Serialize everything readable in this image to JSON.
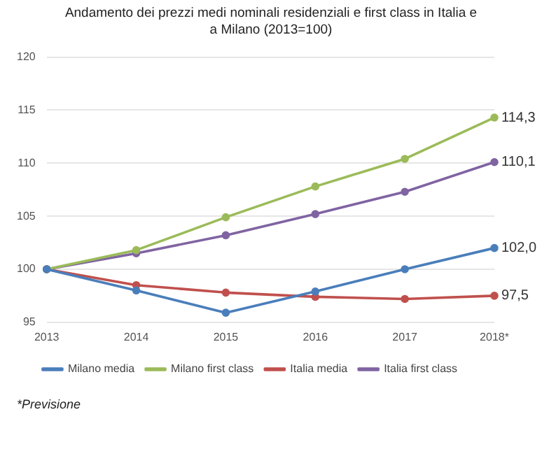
{
  "chart_data": {
    "type": "line",
    "title": "Andamento dei prezzi medi nominali residenziali e first class in Italia e a  Milano (2013=100)",
    "categories": [
      "2013",
      "2014",
      "2015",
      "2016",
      "2017",
      "2018*"
    ],
    "series": [
      {
        "name": "Milano media",
        "color": "#4a7ebb",
        "values": [
          100,
          98.0,
          95.9,
          97.9,
          100,
          102.0
        ],
        "value_labels": [
          null,
          null,
          null,
          null,
          null,
          "102,0"
        ]
      },
      {
        "name": "Milano first class",
        "color": "#9bbb59",
        "values": [
          100,
          101.8,
          104.9,
          107.8,
          110.4,
          114.3
        ],
        "value_labels": [
          null,
          null,
          null,
          null,
          null,
          "114,3"
        ]
      },
      {
        "name": "Italia media",
        "color": "#c0504d",
        "values": [
          100,
          98.5,
          97.8,
          97.4,
          97.2,
          97.5
        ],
        "value_labels": [
          null,
          null,
          null,
          null,
          null,
          "97,5"
        ]
      },
      {
        "name": "Italia first class",
        "color": "#8064a2",
        "values": [
          100,
          101.5,
          103.2,
          105.2,
          107.3,
          110.1
        ],
        "value_labels": [
          null,
          null,
          null,
          null,
          null,
          "110,1"
        ]
      }
    ],
    "ylim": [
      95,
      120
    ],
    "yticks": [
      95,
      100,
      105,
      110,
      115,
      120
    ],
    "grid": "y",
    "legend": "bottom",
    "marker": "circle",
    "line_style": "solid",
    "annotations": [
      "*Previsione"
    ]
  }
}
